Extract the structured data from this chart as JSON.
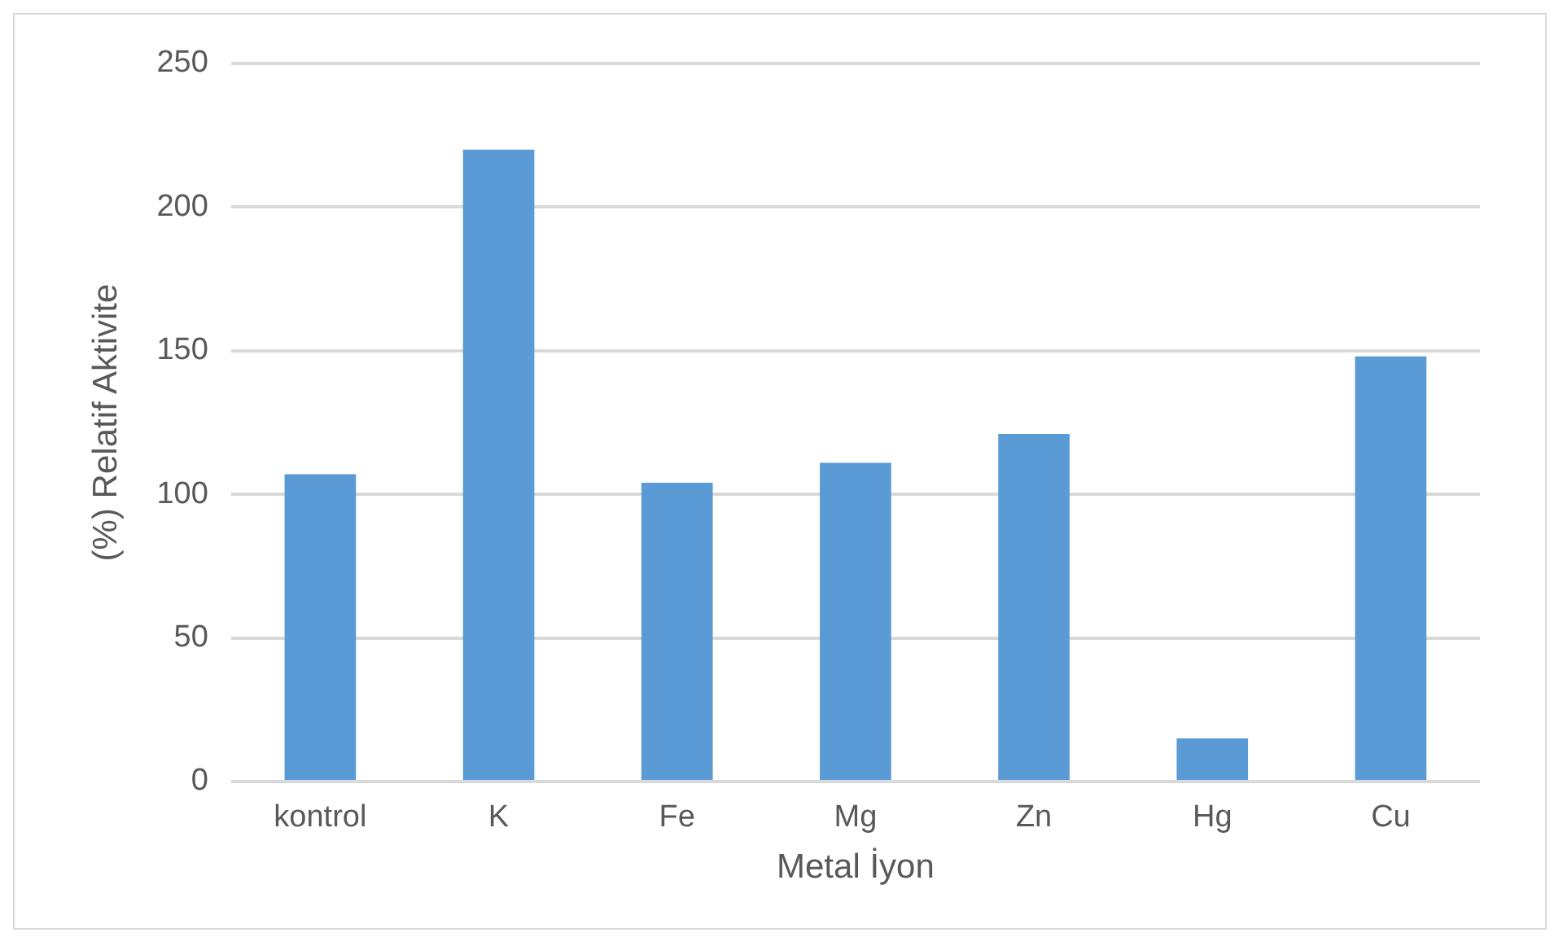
{
  "chart_data": {
    "type": "bar",
    "xlabel": "Metal İyon",
    "ylabel": "(%) Relatif Aktivite",
    "categories": [
      "kontrol",
      "K",
      "Fe",
      "Mg",
      "Zn",
      "Hg",
      "Cu"
    ],
    "values": [
      107,
      220,
      104,
      111,
      121,
      15,
      148
    ],
    "color": "#5b9bd5",
    "ylim": [
      0,
      250
    ],
    "yticks": [
      0,
      50,
      100,
      150,
      200,
      250
    ],
    "grid": "y",
    "legend": false
  }
}
